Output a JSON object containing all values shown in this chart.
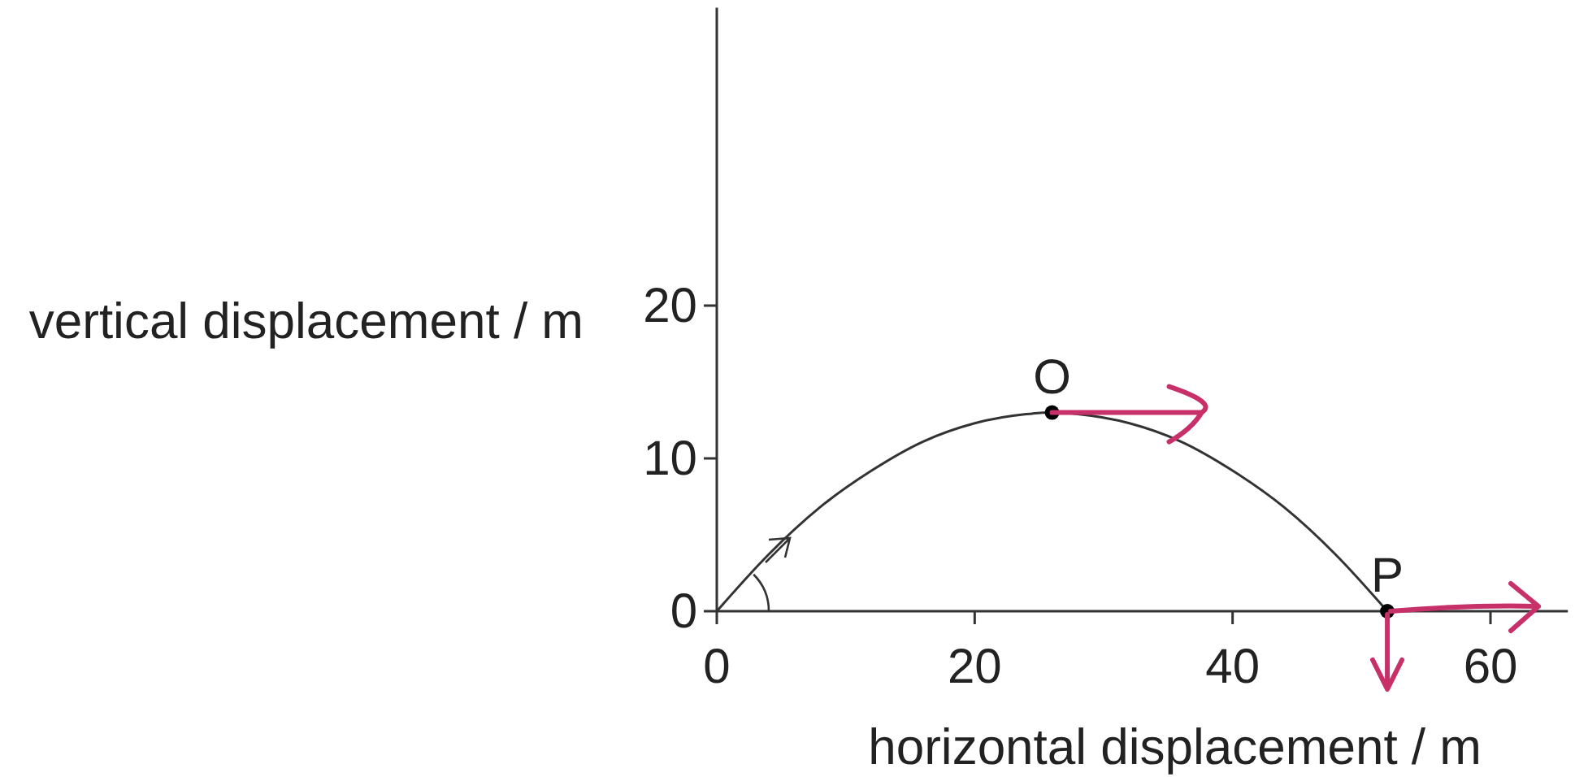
{
  "chart_data": {
    "type": "line",
    "xlabel": "horizontal displacement / m",
    "ylabel": "vertical displacement / m",
    "xlim": [
      0,
      66
    ],
    "xticks": [
      0,
      20,
      40,
      60
    ],
    "ylim": [
      0,
      39.5
    ],
    "yticks": [
      0,
      10,
      20
    ],
    "series": [
      {
        "color": "#333333",
        "x": [
          0,
          4,
          8,
          12,
          16,
          20,
          24,
          26,
          28,
          32,
          36,
          40,
          44,
          48,
          52
        ],
        "values": [
          0,
          3.7,
          6.8,
          9.2,
          11.1,
          12.3,
          12.9,
          13,
          12.9,
          12.3,
          11.1,
          9.2,
          6.8,
          3.7,
          0
        ]
      },
      {
        "type": "scatter",
        "color": "#000000",
        "marker": "circle",
        "x": [
          26,
          52
        ],
        "values": [
          13,
          0
        ]
      }
    ],
    "annotations": [
      {
        "text": "O",
        "x": 26,
        "y": 13
      },
      {
        "text": "P",
        "x": 52,
        "y": 0
      }
    ]
  }
}
